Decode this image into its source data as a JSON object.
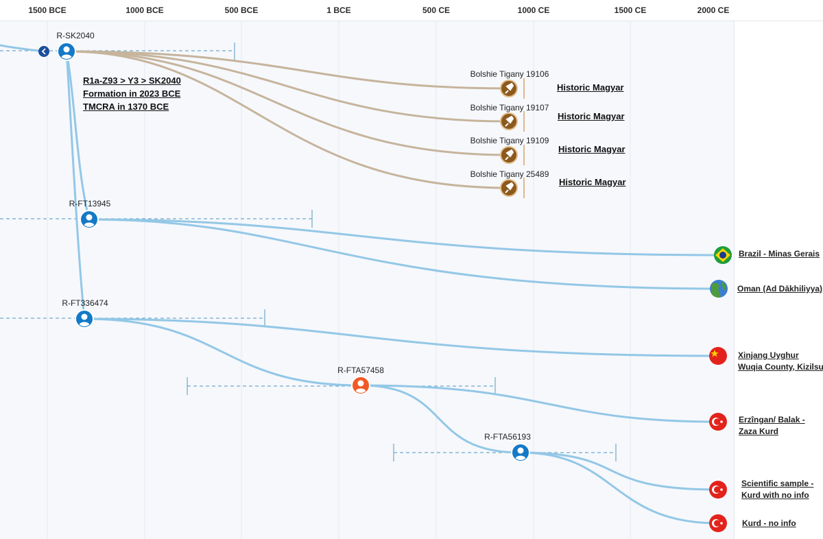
{
  "axis": {
    "ticks": [
      "1500 BCE",
      "1000 BCE",
      "500 BCE",
      "1 BCE",
      "500 CE",
      "1000 CE",
      "1500 CE",
      "2000 CE"
    ]
  },
  "info_box": {
    "line1": "R1a-Z93 > Y3 > SK2040",
    "line2": "Formation in 2023 BCE",
    "line3": "TMCRA in 1370 BCE"
  },
  "nodes": [
    {
      "id": "R-SK2040",
      "label": "R-SK2040"
    },
    {
      "id": "R-FT13945",
      "label": "R-FT13945"
    },
    {
      "id": "R-FT336474",
      "label": "R-FT336474"
    },
    {
      "id": "R-FTA57458",
      "label": "R-FTA57458"
    },
    {
      "id": "R-FTA56193",
      "label": "R-FTA56193"
    }
  ],
  "ancient_samples": [
    {
      "name": "Bolshie Tigany 19106",
      "culture": "Historic Magyar"
    },
    {
      "name": "Bolshie Tigany 19107",
      "culture": "Historic Magyar"
    },
    {
      "name": "Bolshie Tigany 19109",
      "culture": "Historic Magyar"
    },
    {
      "name": "Bolshie Tigany 25489",
      "culture": "Historic Magyar"
    }
  ],
  "modern_samples": [
    {
      "line1": "Brazil - Minas Gerais",
      "line2": "",
      "flag": "brazil"
    },
    {
      "line1": "Oman (Ad Dākhiliyya)",
      "line2": "",
      "flag": "globe"
    },
    {
      "line1": "Xinjang Uyghur",
      "line2": "Wuqia County, Kizilsu",
      "flag": "china"
    },
    {
      "line1": "Erzîngan/ Balak -",
      "line2": "Zaza Kurd",
      "flag": "turkey"
    },
    {
      "line1": "Scientific sample -",
      "line2": "Kurd with no info",
      "flag": "turkey"
    },
    {
      "line1": "Kurd - no info",
      "line2": "",
      "flag": "turkey"
    }
  ],
  "colors": {
    "modern_branch": "#93c7e6",
    "ancient_branch": "#c6b49c",
    "node_blue": "#1479c6",
    "node_orange": "#f05a28",
    "ancient_icon": "#8c5a1e",
    "range_line": "#6fa8c8",
    "grid": "#e4e8ef"
  }
}
